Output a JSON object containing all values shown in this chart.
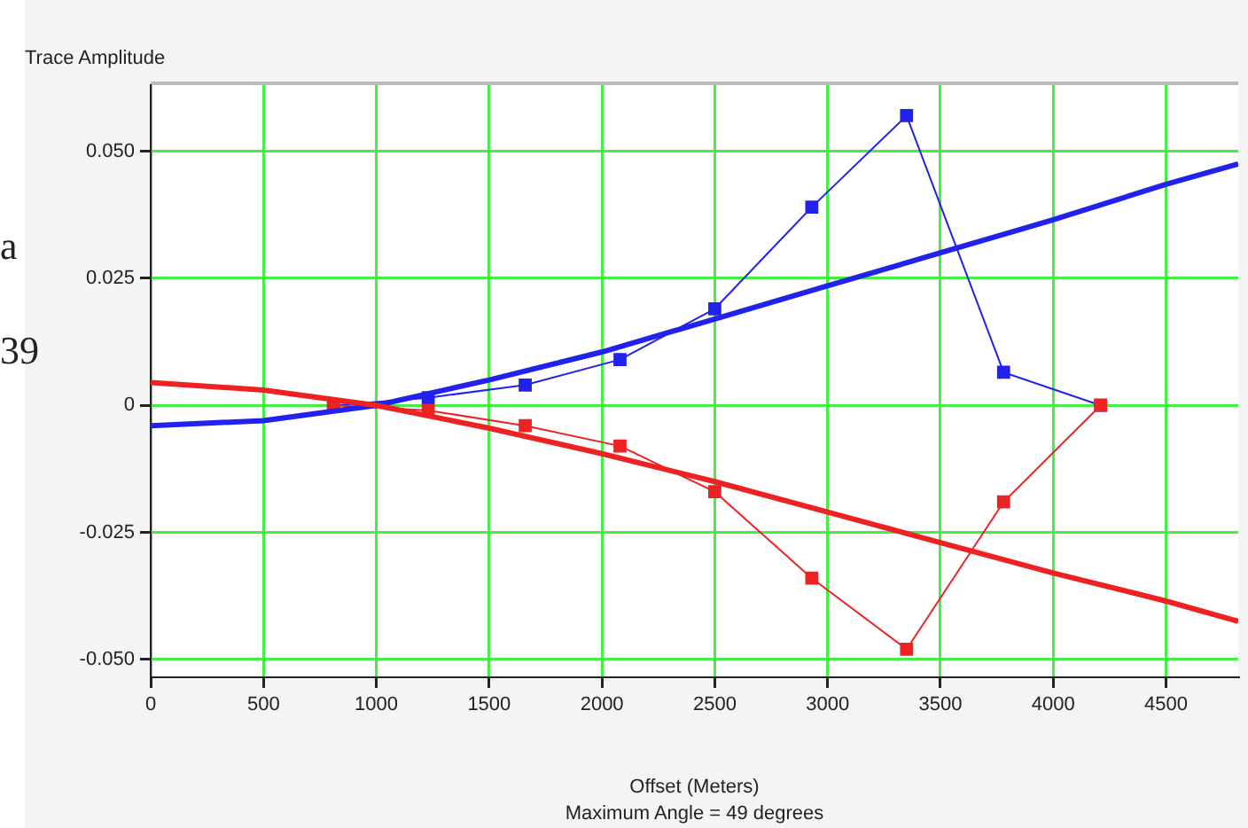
{
  "chart_data": {
    "type": "line",
    "ylabel": "Trace Amplitude",
    "xlabel": "Offset (Meters)",
    "annotations": [
      "Maximum Angle = 49 degrees",
      "a",
      "39"
    ],
    "xlim": [
      0,
      4820
    ],
    "xticks": [
      0,
      500,
      1000,
      1500,
      2000,
      2500,
      3000,
      3500,
      4000,
      4500
    ],
    "ylim": [
      -0.0535,
      0.063
    ],
    "yticks": [
      {
        "value": -0.05,
        "label": "-0.050"
      },
      {
        "value": -0.025,
        "label": "-0.025"
      },
      0,
      {
        "value": 0.025,
        "label": "0.025"
      },
      {
        "value": 0.05,
        "label": "0.050"
      }
    ],
    "grid": true,
    "legend": false,
    "series": [
      {
        "color": "#ee2222",
        "marker": "none",
        "line_style": "solid",
        "x": [
          0,
          500,
          1000,
          1500,
          2000,
          2500,
          3000,
          3500,
          4000,
          4500,
          4820
        ],
        "values": [
          0.0045,
          0.003,
          0,
          -0.0045,
          -0.0095,
          -0.015,
          -0.021,
          -0.027,
          -0.033,
          -0.0385,
          -0.0425
        ]
      },
      {
        "color": "#2222ee",
        "marker": "none",
        "line_style": "solid",
        "x": [
          0,
          500,
          1000,
          1500,
          2000,
          2500,
          3000,
          3500,
          4000,
          4500,
          4820
        ],
        "values": [
          -0.004,
          -0.003,
          0,
          0.005,
          0.0105,
          0.017,
          0.0235,
          0.03,
          0.0365,
          0.0435,
          0.0475
        ]
      },
      {
        "color": "#ee2222",
        "marker": "square",
        "line_style": "solid",
        "x": [
          810,
          1230,
          1660,
          2080,
          2500,
          2930,
          3350,
          3780,
          4210
        ],
        "values": [
          0,
          -0.001,
          -0.004,
          -0.008,
          -0.017,
          -0.034,
          -0.048,
          -0.019,
          0
        ]
      },
      {
        "color": "#2222ee",
        "marker": "square",
        "line_style": "solid",
        "x": [
          810,
          1230,
          1660,
          2080,
          2500,
          2930,
          3350,
          3780,
          4210
        ],
        "values": [
          0,
          0.0015,
          0.004,
          0.009,
          0.019,
          0.039,
          0.057,
          0.0065,
          0
        ]
      }
    ]
  }
}
